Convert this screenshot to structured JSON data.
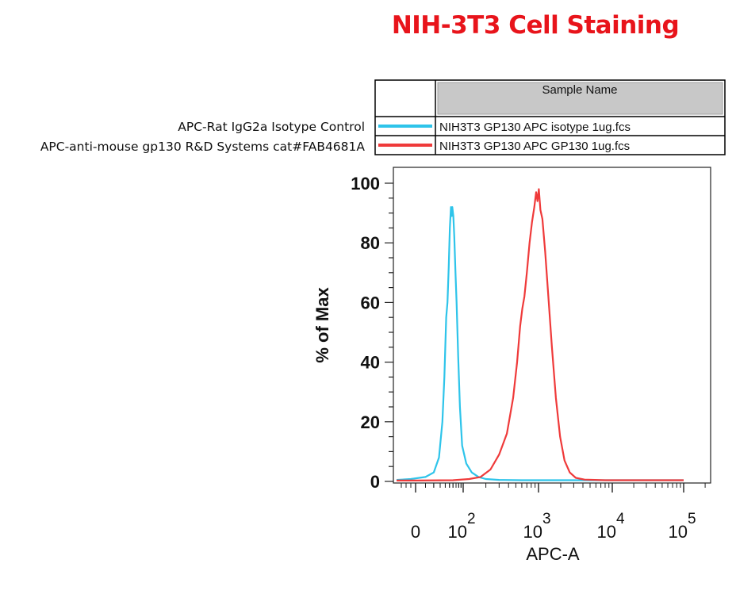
{
  "title": "NIH-3T3 Cell Staining",
  "legend_descriptions": [
    "APC-Rat IgG2a Isotype Control",
    "APC-anti-mouse gp130 R&D Systems cat#FAB4681A"
  ],
  "sample_table": {
    "header": "Sample Name",
    "rows": [
      {
        "name": "NIH3T3 GP130  APC isotype 1ug.fcs",
        "color": "#2ec4ea"
      },
      {
        "name": "NIH3T3 GP130  APC GP130 1ug.fcs",
        "color": "#ef3a3a"
      }
    ]
  },
  "chart_data": {
    "type": "line",
    "xlabel": "APC-A",
    "ylabel": "% of Max",
    "x_scale": "biexponential",
    "x_ticks": [
      {
        "value": 0,
        "label": "0"
      },
      {
        "value": 100,
        "base": "10",
        "exp": "2"
      },
      {
        "value": 1000,
        "base": "10",
        "exp": "3"
      },
      {
        "value": 10000,
        "base": "10",
        "exp": "4"
      },
      {
        "value": 100000,
        "base": "10",
        "exp": "5"
      }
    ],
    "ylim": [
      0,
      100
    ],
    "y_ticks": [
      "0",
      "20",
      "40",
      "60",
      "80",
      "100"
    ],
    "series": [
      {
        "color": "#2ec4ea",
        "points": [
          [
            -40,
            0.5
          ],
          [
            -10,
            0.8
          ],
          [
            10,
            1.5
          ],
          [
            20,
            3
          ],
          [
            28,
            8
          ],
          [
            34,
            20
          ],
          [
            38,
            35
          ],
          [
            42,
            55
          ],
          [
            45,
            60
          ],
          [
            48,
            72
          ],
          [
            51,
            85
          ],
          [
            54,
            92
          ],
          [
            56,
            89
          ],
          [
            58,
            92
          ],
          [
            61,
            89
          ],
          [
            64,
            82
          ],
          [
            68,
            70
          ],
          [
            72,
            60
          ],
          [
            78,
            42
          ],
          [
            85,
            25
          ],
          [
            95,
            12
          ],
          [
            110,
            6
          ],
          [
            130,
            3
          ],
          [
            160,
            1.5
          ],
          [
            200,
            0.8
          ],
          [
            300,
            0.5
          ],
          [
            600,
            0.4
          ],
          [
            2000,
            0.4
          ],
          [
            10000,
            0.4
          ],
          [
            100000,
            0.4
          ]
        ]
      },
      {
        "color": "#ef3a3a",
        "points": [
          [
            -40,
            0.3
          ],
          [
            0,
            0.3
          ],
          [
            60,
            0.4
          ],
          [
            120,
            0.8
          ],
          [
            170,
            1.5
          ],
          [
            230,
            4
          ],
          [
            300,
            9
          ],
          [
            380,
            16
          ],
          [
            460,
            28
          ],
          [
            520,
            40
          ],
          [
            570,
            52
          ],
          [
            610,
            58
          ],
          [
            650,
            62
          ],
          [
            700,
            70
          ],
          [
            760,
            80
          ],
          [
            820,
            87
          ],
          [
            880,
            92
          ],
          [
            930,
            97
          ],
          [
            970,
            94
          ],
          [
            1010,
            98
          ],
          [
            1060,
            91
          ],
          [
            1130,
            88
          ],
          [
            1230,
            77
          ],
          [
            1360,
            62
          ],
          [
            1520,
            45
          ],
          [
            1720,
            28
          ],
          [
            1960,
            15
          ],
          [
            2250,
            7
          ],
          [
            2650,
            3
          ],
          [
            3200,
            1.2
          ],
          [
            4200,
            0.6
          ],
          [
            8000,
            0.4
          ],
          [
            30000,
            0.4
          ],
          [
            100000,
            0.4
          ]
        ]
      }
    ]
  }
}
